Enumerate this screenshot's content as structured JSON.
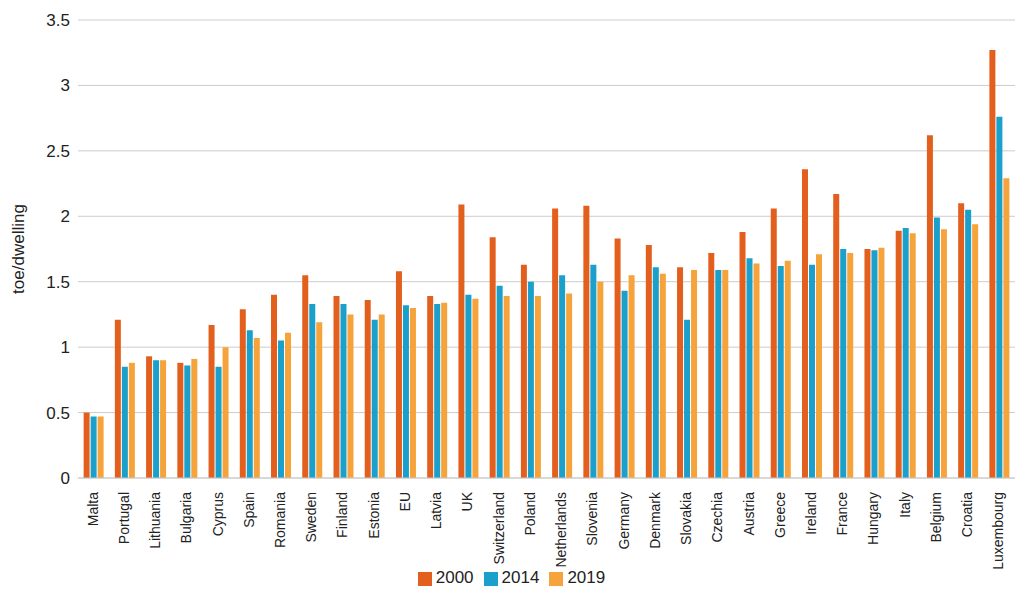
{
  "chart_data": {
    "type": "bar",
    "y_label": "toe/dwelling",
    "categories": [
      "Malta",
      "Portugal",
      "Lithuania",
      "Bulgaria",
      "Cyprus",
      "Spain",
      "Romania",
      "Sweden",
      "Finland",
      "Estonia",
      "EU",
      "Latvia",
      "UK",
      "Switzerland",
      "Poland",
      "Netherlands",
      "Slovenia",
      "Germany",
      "Denmark",
      "Slovakia",
      "Czechia",
      "Austria",
      "Greece",
      "Ireland",
      "France",
      "Hungary",
      "Italy",
      "Belgium",
      "Croatia",
      "Luxembourg"
    ],
    "series": [
      {
        "name": "2000",
        "color": "#e35f1e",
        "values": [
          0.5,
          1.21,
          0.93,
          0.88,
          1.17,
          1.29,
          1.4,
          1.55,
          1.39,
          1.36,
          1.58,
          1.39,
          2.09,
          1.84,
          1.63,
          2.06,
          2.08,
          1.83,
          1.78,
          1.61,
          1.72,
          1.88,
          2.06,
          2.36,
          2.17,
          1.75,
          1.89,
          2.62,
          2.1,
          3.27
        ]
      },
      {
        "name": "2014",
        "color": "#1ba0cc",
        "values": [
          0.47,
          0.85,
          0.9,
          0.86,
          0.85,
          1.13,
          1.05,
          1.33,
          1.33,
          1.21,
          1.32,
          1.33,
          1.4,
          1.47,
          1.5,
          1.55,
          1.63,
          1.43,
          1.61,
          1.21,
          1.59,
          1.68,
          1.62,
          1.63,
          1.75,
          1.74,
          1.91,
          1.99,
          2.05,
          2.76
        ]
      },
      {
        "name": "2019",
        "color": "#f5a33a",
        "values": [
          0.47,
          0.88,
          0.9,
          0.91,
          1.0,
          1.07,
          1.11,
          1.19,
          1.25,
          1.25,
          1.3,
          1.34,
          1.37,
          1.39,
          1.39,
          1.41,
          1.5,
          1.55,
          1.56,
          1.59,
          1.59,
          1.64,
          1.66,
          1.71,
          1.72,
          1.76,
          1.87,
          1.9,
          1.94,
          2.29
        ]
      }
    ],
    "ylim": [
      0,
      3.5
    ],
    "yticks": [
      0,
      0.5,
      1,
      1.5,
      2,
      2.5,
      3,
      3.5
    ],
    "grid": true,
    "legend": "bottom"
  }
}
